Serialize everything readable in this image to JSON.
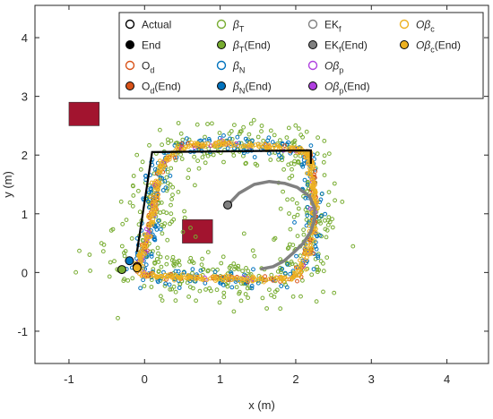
{
  "chart_data": {
    "type": "scatter",
    "title": "",
    "xlabel": "x (m)",
    "ylabel": "y (m)",
    "xlim": [
      -1.45,
      4.55
    ],
    "ylim": [
      -1.55,
      4.55
    ],
    "xticks": [
      -1,
      0,
      1,
      2,
      3,
      4
    ],
    "yticks": [
      -1,
      0,
      1,
      2,
      3,
      4
    ],
    "xtick_labels": [
      "-1",
      "0",
      "1",
      "2",
      "3",
      "4"
    ],
    "ytick_labels": [
      "-1",
      "0",
      "1",
      "2",
      "3",
      "4"
    ],
    "grid": false,
    "legend_position": "top-right",
    "legend_columns": 4,
    "colors": {
      "actual": "#000000",
      "beta_t": "#77ac30",
      "ekf": "#808080",
      "o_d": "#d95319",
      "beta_n": "#0072bd",
      "o_beta_p": "#b040e0",
      "o_beta_c": "#edb120",
      "obstacle": "#a2142f"
    },
    "legend": [
      {
        "id": "actual",
        "base": "Actual",
        "sub": "",
        "greek": false,
        "filled": false,
        "color": "#000000"
      },
      {
        "id": "end",
        "base": "End",
        "sub": "",
        "greek": false,
        "filled": true,
        "color": "#000000"
      },
      {
        "id": "o_d",
        "base": "O",
        "sub": "d",
        "greek": false,
        "suffix": "",
        "filled": false,
        "color": "#d95319"
      },
      {
        "id": "o_d_end",
        "base": "O",
        "sub": "d",
        "greek": false,
        "suffix": "(End)",
        "filled": true,
        "color": "#d95319"
      },
      {
        "id": "beta_t",
        "base": "β",
        "sub": "T",
        "greek": true,
        "suffix": "",
        "filled": false,
        "color": "#77ac30"
      },
      {
        "id": "beta_t_end",
        "base": "β",
        "sub": "T",
        "greek": true,
        "suffix": "(End)",
        "filled": true,
        "color": "#77ac30"
      },
      {
        "id": "beta_n",
        "base": "β",
        "sub": "N",
        "greek": true,
        "suffix": "",
        "filled": false,
        "color": "#0072bd"
      },
      {
        "id": "beta_n_end",
        "base": "β",
        "sub": "N",
        "greek": true,
        "suffix": "(End)",
        "filled": true,
        "color": "#0072bd"
      },
      {
        "id": "ekf",
        "base": "EK",
        "sub": "f",
        "greek": false,
        "suffix": "",
        "filled": false,
        "color": "#808080"
      },
      {
        "id": "ekf_end",
        "base": "EK",
        "sub": "f",
        "greek": false,
        "suffix": "(End)",
        "filled": true,
        "color": "#808080"
      },
      {
        "id": "o_beta_p",
        "base": "Oβ",
        "sub": "p",
        "greek": true,
        "suffix": "",
        "filled": false,
        "color": "#b040e0"
      },
      {
        "id": "o_beta_p_end",
        "base": "Oβ",
        "sub": "p",
        "greek": true,
        "suffix": "(End)",
        "filled": true,
        "color": "#b040e0"
      },
      {
        "id": "o_beta_c",
        "base": "Oβ",
        "sub": "c",
        "greek": true,
        "suffix": "",
        "filled": false,
        "color": "#edb120"
      },
      {
        "id": "o_beta_c_end",
        "base": "Oβ",
        "sub": "c",
        "greek": true,
        "suffix": "(End)",
        "filled": true,
        "color": "#edb120"
      }
    ],
    "obstacles": [
      {
        "x": [
          -1.0,
          -0.6
        ],
        "y": [
          2.5,
          2.9
        ]
      },
      {
        "x": [
          0.5,
          0.9
        ],
        "y": [
          0.5,
          0.9
        ]
      }
    ],
    "actual_path": {
      "x": [
        -0.1,
        0.1,
        2.2,
        2.2
      ],
      "y": [
        0.35,
        2.05,
        2.08,
        1.85
      ]
    },
    "end_points": [
      {
        "series": "beta_t_end",
        "x": -0.3,
        "y": 0.05
      },
      {
        "series": "beta_n_end",
        "x": -0.2,
        "y": 0.2
      },
      {
        "series": "o_d_end",
        "x": -0.1,
        "y": 0.1
      },
      {
        "series": "o_beta_c_end",
        "x": -0.1,
        "y": 0.08
      },
      {
        "series": "ekf_end",
        "x": 1.1,
        "y": 1.15
      }
    ],
    "ekf_path": {
      "x": [
        1.1,
        1.25,
        1.45,
        1.65,
        1.85,
        2.02,
        2.18,
        2.25,
        2.25,
        2.2,
        2.1,
        1.98,
        1.85,
        1.7,
        1.55
      ],
      "y": [
        1.15,
        1.35,
        1.5,
        1.55,
        1.52,
        1.45,
        1.3,
        1.1,
        0.9,
        0.7,
        0.5,
        0.35,
        0.2,
        0.1,
        0.06
      ]
    },
    "loop_path": {
      "x": [
        -0.1,
        0.0,
        0.1,
        0.2,
        0.5,
        1.0,
        1.5,
        2.0,
        2.15,
        2.2,
        2.25,
        2.22,
        2.1,
        2.05,
        2.0,
        1.5,
        1.0,
        0.5,
        0.05,
        -0.1
      ],
      "y": [
        0.05,
        0.4,
        1.0,
        1.8,
        2.15,
        2.2,
        2.15,
        2.1,
        2.05,
        1.8,
        1.2,
        0.6,
        0.15,
        0.0,
        -0.1,
        -0.12,
        -0.1,
        -0.08,
        -0.05,
        0.05
      ]
    },
    "scatter_clouds": [
      {
        "series": "beta_t",
        "count": 520,
        "spread": 0.28
      },
      {
        "series": "beta_n",
        "count": 300,
        "spread": 0.12
      },
      {
        "series": "o_d",
        "count": 140,
        "spread": 0.04
      },
      {
        "series": "o_beta_p",
        "count": 60,
        "spread": 0.035
      },
      {
        "series": "o_beta_c",
        "count": 460,
        "spread": 0.04
      }
    ]
  }
}
